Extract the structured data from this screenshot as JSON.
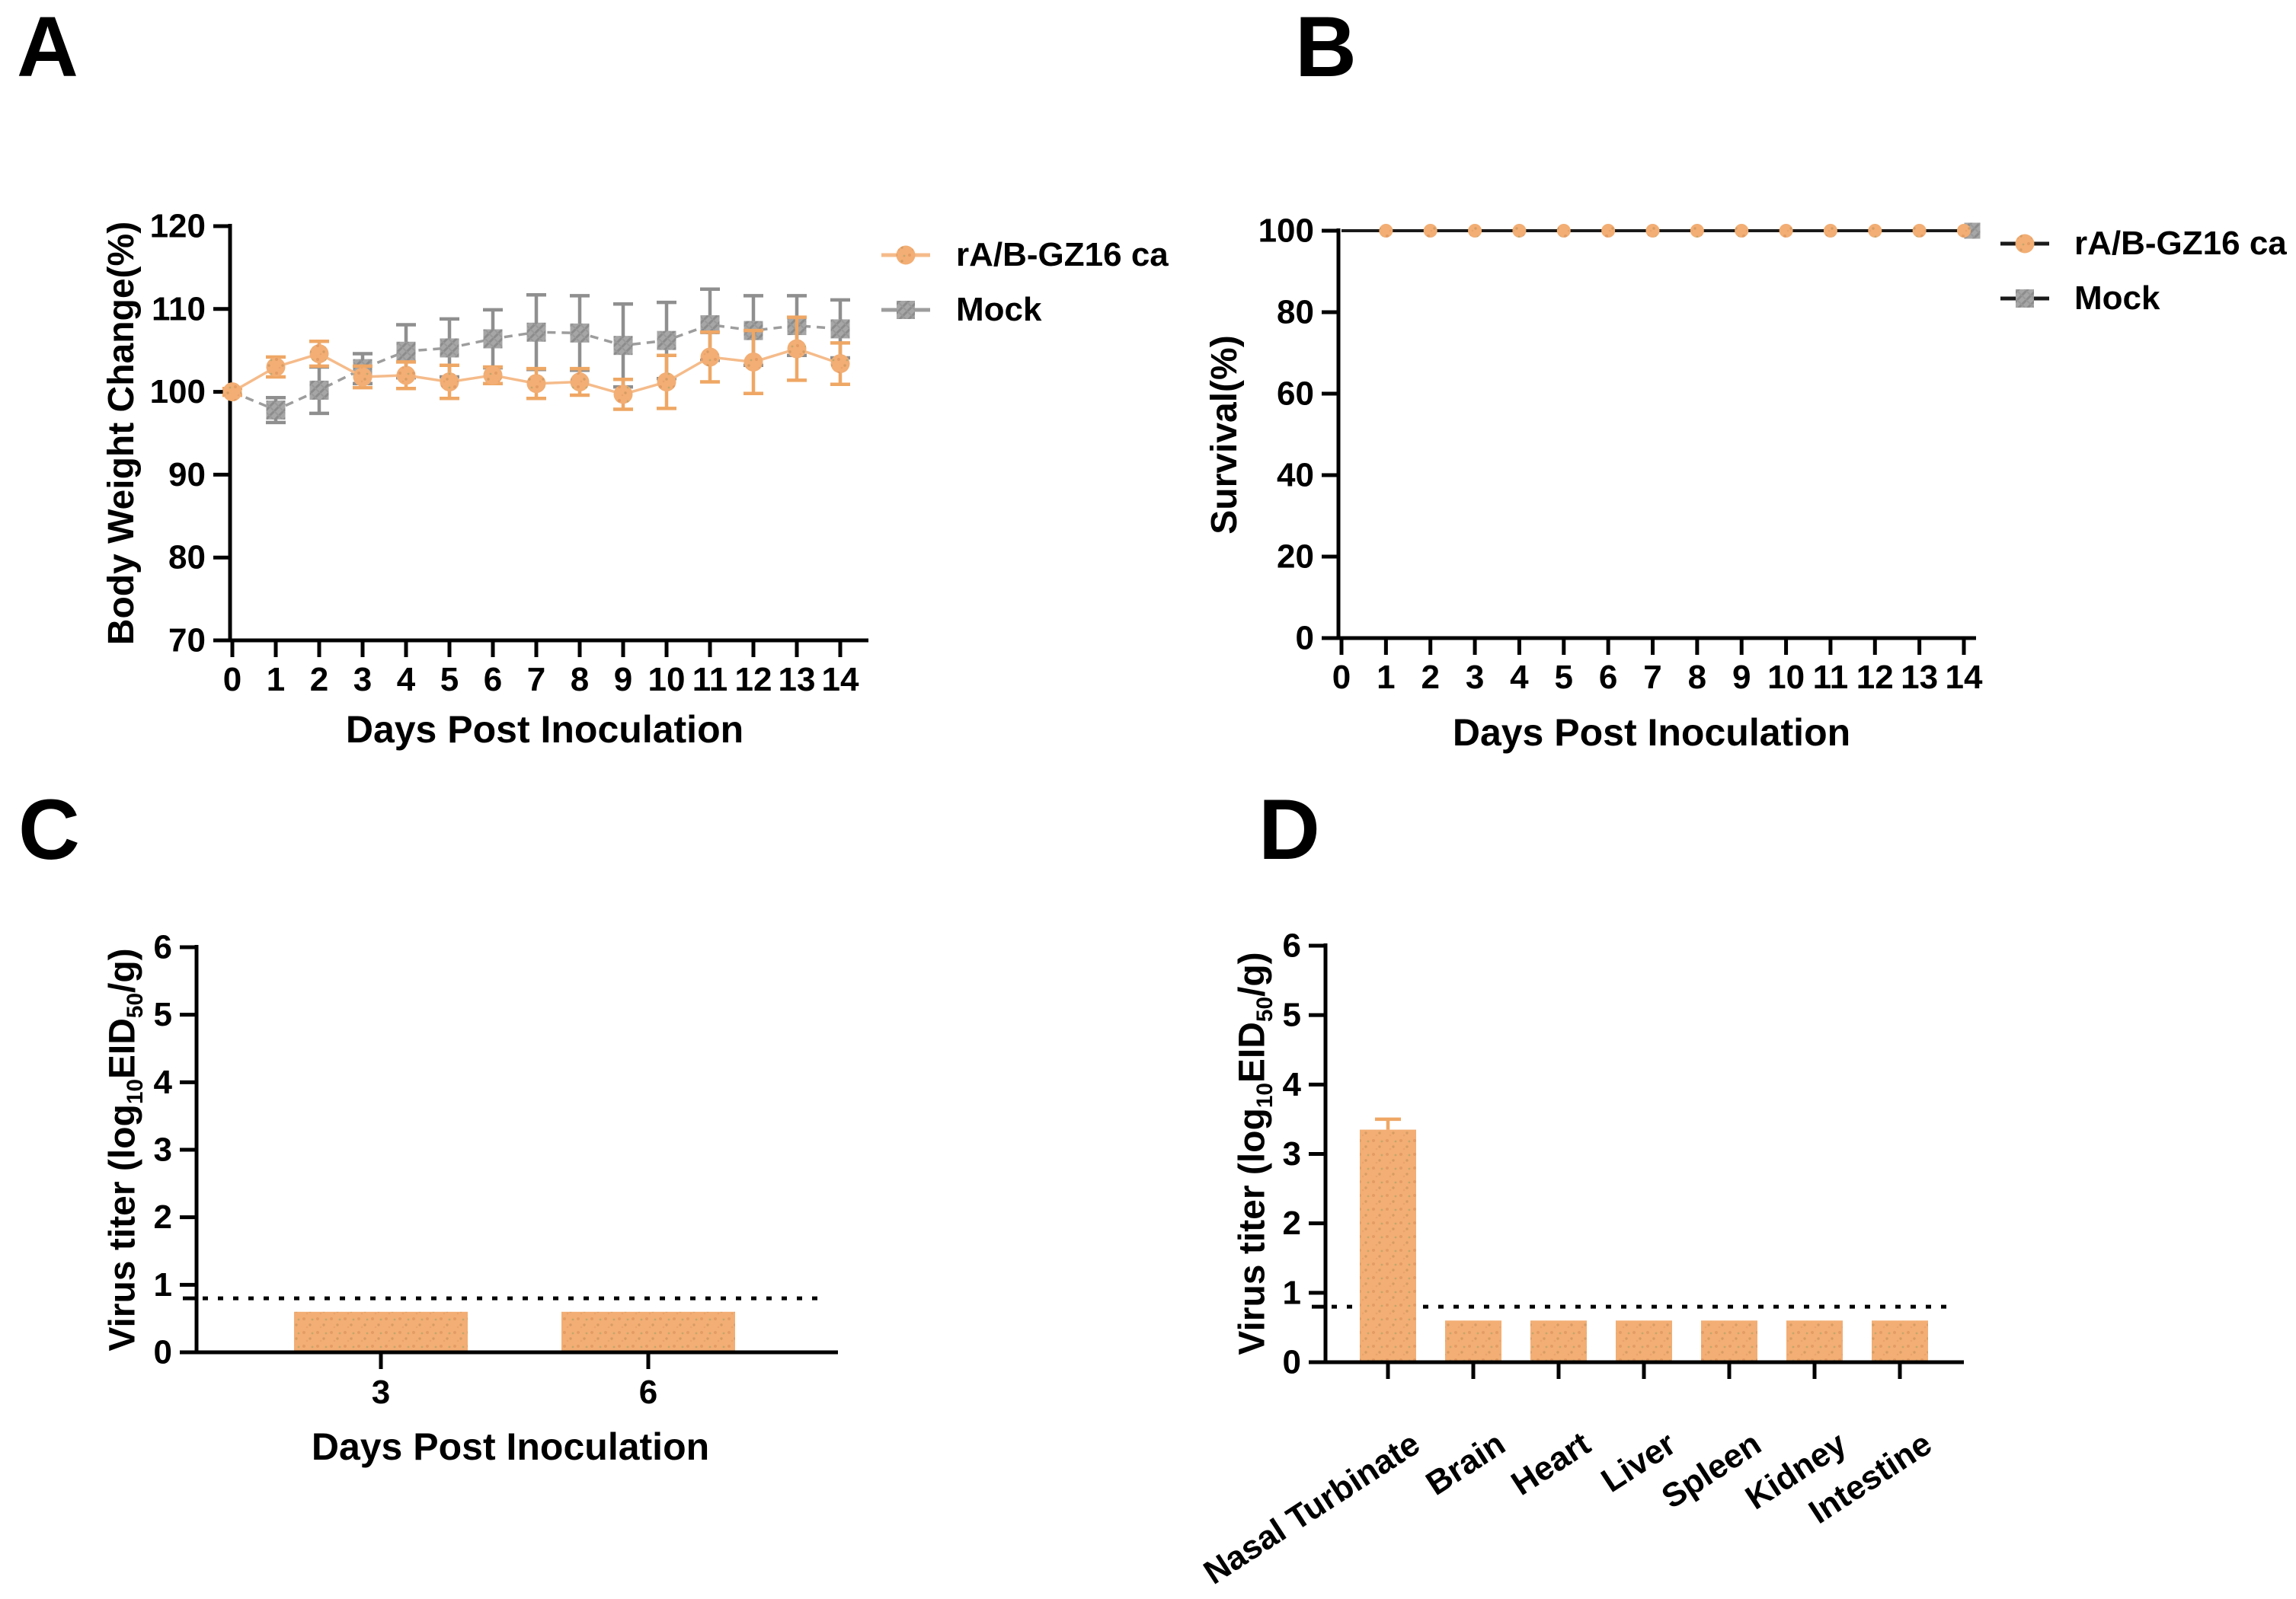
{
  "figure": {
    "panel_letters": {
      "a": "A",
      "b": "B",
      "c": "C",
      "d": "D"
    },
    "colors": {
      "orange": "#F2AE74",
      "orange_line": "#F5BB8A",
      "orange_err": "#EFA765",
      "orange_dot1": "#D8905A",
      "orange_dot2": "#B98A52",
      "orange_dot3": "#8E9B60",
      "gray": "#A6A6A6",
      "gray_dark": "#8C8C8C",
      "gray_mid": "#999999",
      "gray_line": "#9D9D9D",
      "gray_err": "#8F8F8F",
      "axis": "#000000",
      "survival_line": "#1A1A1A",
      "detection_line": "#000000"
    }
  },
  "chart_data": [
    {
      "id": "A",
      "type": "line",
      "xlabel": "Days Post Inoculation",
      "ylabel": "Body Weight Change(%)",
      "x": [
        0,
        1,
        2,
        3,
        4,
        5,
        6,
        7,
        8,
        9,
        10,
        11,
        12,
        13,
        14
      ],
      "xticks": [
        0,
        1,
        2,
        3,
        4,
        5,
        6,
        7,
        8,
        9,
        10,
        11,
        12,
        13,
        14
      ],
      "xlim": [
        0,
        14
      ],
      "ylim": [
        70,
        120
      ],
      "yticks": [
        70,
        80,
        90,
        100,
        110,
        120
      ],
      "grid": false,
      "legend_position": "right-top",
      "series": [
        {
          "name": "rA/B-GZ16 ca",
          "marker": "circle",
          "line_style": "solid",
          "values": [
            100,
            103,
            104.6,
            101.8,
            102,
            101.2,
            102,
            101,
            101.2,
            99.7,
            101.2,
            104.2,
            103.6,
            105.2,
            103.4
          ],
          "errors": [
            0.4,
            1.2,
            1.5,
            1.3,
            1.6,
            2,
            1,
            1.8,
            1.6,
            1.8,
            3.2,
            3,
            3.8,
            3.8,
            2.5
          ]
        },
        {
          "name": "Mock",
          "marker": "square",
          "line_style": "dashed",
          "values": [
            100,
            97.8,
            100.2,
            102.8,
            104.9,
            105.3,
            106.4,
            107.2,
            107.1,
            105.6,
            106.2,
            108.1,
            107.4,
            108,
            107.6
          ],
          "errors": [
            0.4,
            1.5,
            2.8,
            1.8,
            3.2,
            3.5,
            3.5,
            4.5,
            4.5,
            5,
            4.6,
            4.3,
            4.2,
            3.6,
            3.5
          ]
        }
      ]
    },
    {
      "id": "B",
      "type": "line",
      "xlabel": "Days Post Inoculation",
      "ylabel": "Survival(%)",
      "x": [
        0,
        1,
        2,
        3,
        4,
        5,
        6,
        7,
        8,
        9,
        10,
        11,
        12,
        13,
        14
      ],
      "xticks": [
        0,
        1,
        2,
        3,
        4,
        5,
        6,
        7,
        8,
        9,
        10,
        11,
        12,
        13,
        14
      ],
      "xlim": [
        0,
        14
      ],
      "ylim": [
        0,
        100
      ],
      "yticks": [
        0,
        20,
        40,
        60,
        80,
        100
      ],
      "grid": false,
      "legend_position": "right-top",
      "series": [
        {
          "name": "rA/B-GZ16 ca",
          "marker": "circle",
          "line_style": "solid",
          "values": [
            100,
            100,
            100,
            100,
            100,
            100,
            100,
            100,
            100,
            100,
            100,
            100,
            100,
            100,
            100
          ],
          "errors": [
            0,
            0,
            0,
            0,
            0,
            0,
            0,
            0,
            0,
            0,
            0,
            0,
            0,
            0,
            0
          ],
          "marker_days": [
            1,
            2,
            3,
            4,
            5,
            6,
            7,
            8,
            9,
            10,
            11,
            12,
            13,
            14
          ]
        },
        {
          "name": "Mock",
          "marker": "square",
          "line_style": "solid",
          "values": [
            100,
            100,
            100,
            100,
            100,
            100,
            100,
            100,
            100,
            100,
            100,
            100,
            100,
            100,
            100
          ],
          "errors": [
            0,
            0,
            0,
            0,
            0,
            0,
            0,
            0,
            0,
            0,
            0,
            0,
            0,
            0,
            0
          ],
          "marker_days": [
            14
          ]
        }
      ]
    },
    {
      "id": "C",
      "type": "bar",
      "xlabel": "Days Post Inoculation",
      "ylabel": "Virus titer (log10EID50/g)",
      "ylabel_parts": [
        {
          "text": "Virus titer (log"
        },
        {
          "text": "10",
          "sub": true
        },
        {
          "text": "EID"
        },
        {
          "text": "50",
          "sub": true
        },
        {
          "text": "/g)"
        }
      ],
      "categories": [
        "3",
        "6"
      ],
      "values": [
        0.6,
        0.6
      ],
      "errors": [
        0,
        0
      ],
      "ylim": [
        0,
        6
      ],
      "yticks": [
        0,
        1,
        2,
        3,
        4,
        5,
        6
      ],
      "detection_limit": 0.8,
      "note": "bars below dotted detection limit line"
    },
    {
      "id": "D",
      "type": "bar",
      "xlabel": "",
      "ylabel": "Virus titer (log10EID50/g)",
      "ylabel_parts": [
        {
          "text": "Virus titer (log"
        },
        {
          "text": "10",
          "sub": true
        },
        {
          "text": "EID"
        },
        {
          "text": "50",
          "sub": true
        },
        {
          "text": "/g)"
        }
      ],
      "categories": [
        "Nasal Turbinate",
        "Brain",
        "Heart",
        "Liver",
        "Spleen",
        "Kidney",
        "Intestine"
      ],
      "values": [
        3.35,
        0.6,
        0.6,
        0.6,
        0.6,
        0.6,
        0.6
      ],
      "errors": [
        0.15,
        0,
        0,
        0,
        0,
        0,
        0
      ],
      "ylim": [
        0,
        6
      ],
      "yticks": [
        0,
        1,
        2,
        3,
        4,
        5,
        6
      ],
      "detection_limit": 0.8,
      "note": "only nasal turbinate above dotted detection limit line"
    }
  ]
}
